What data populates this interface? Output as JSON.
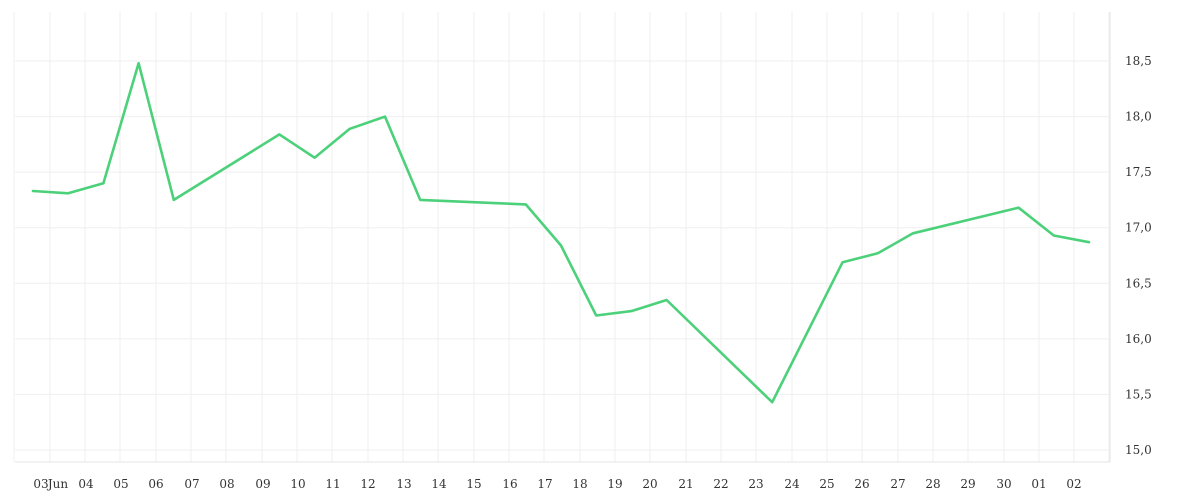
{
  "chart_data": {
    "type": "line",
    "title": "",
    "xlabel": "",
    "ylabel": "",
    "x_tick_labels": [
      "03",
      "Jun",
      "04",
      "05",
      "06",
      "07",
      "08",
      "09",
      "10",
      "11",
      "12",
      "13",
      "14",
      "15",
      "16",
      "17",
      "18",
      "19",
      "20",
      "21",
      "22",
      "23",
      "24",
      "25",
      "26",
      "27",
      "28",
      "29",
      "30",
      "01",
      "02"
    ],
    "y_tick_labels": [
      "15,0",
      "15,5",
      "16,0",
      "16,5",
      "17,0",
      "17,5",
      "18,0",
      "18,5"
    ],
    "ylim": [
      14.9,
      18.6
    ],
    "grid": true,
    "legend": "none",
    "series": [
      {
        "values": [
          {
            "x": "2024-05-31T00:00",
            "y": 17.33
          },
          {
            "x": "2024-06-01T00:00",
            "y": 17.31
          },
          {
            "x": "2024-06-02T00:00",
            "y": 17.4
          },
          {
            "x": "2024-06-03T00:00",
            "y": 18.48
          },
          {
            "x": "2024-06-04T00:00",
            "y": 17.25
          },
          {
            "x": "2024-06-07T00:00",
            "y": 17.84
          },
          {
            "x": "2024-06-08T00:00",
            "y": 17.63
          },
          {
            "x": "2024-06-09T00:00",
            "y": 17.89
          },
          {
            "x": "2024-06-10T00:00",
            "y": 18.0
          },
          {
            "x": "2024-06-11T00:00",
            "y": 17.25
          },
          {
            "x": "2024-06-14T00:00",
            "y": 17.21
          },
          {
            "x": "2024-06-15T00:00",
            "y": 16.84
          },
          {
            "x": "2024-06-16T00:00",
            "y": 16.21
          },
          {
            "x": "2024-06-17T00:00",
            "y": 16.25
          },
          {
            "x": "2024-06-18T00:00",
            "y": 16.35
          },
          {
            "x": "2024-06-21T00:00",
            "y": 15.43
          },
          {
            "x": "2024-06-23T00:00",
            "y": 16.69
          },
          {
            "x": "2024-06-24T00:00",
            "y": 16.77
          },
          {
            "x": "2024-06-25T00:00",
            "y": 16.95
          },
          {
            "x": "2024-06-28T00:00",
            "y": 17.18
          },
          {
            "x": "2024-06-29T00:00",
            "y": 16.93
          },
          {
            "x": "2024-06-30T00:00",
            "y": 16.87
          }
        ]
      }
    ]
  },
  "colors": {
    "line": "#4cd17a",
    "grid": "#efefef",
    "text": "#333333"
  }
}
